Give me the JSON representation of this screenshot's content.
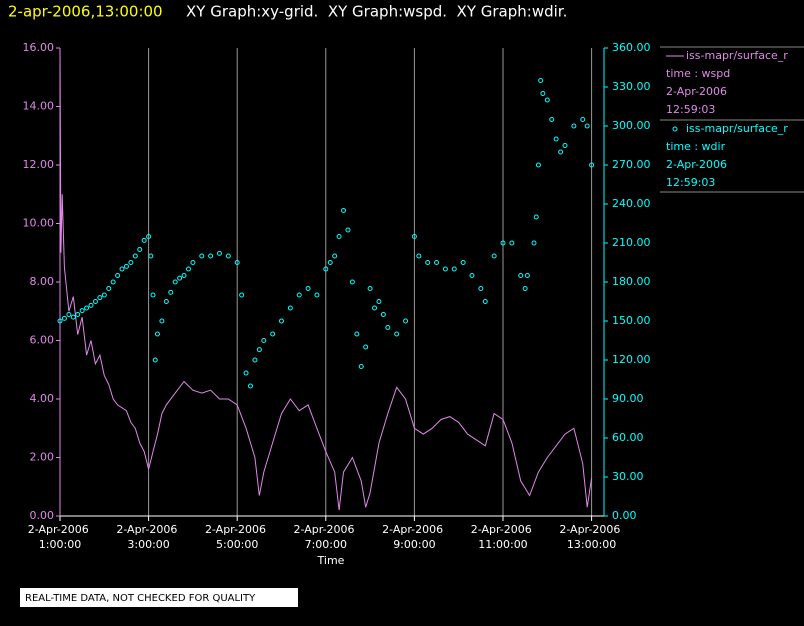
{
  "chart_data": {
    "type": "line",
    "title": "2-apr-2006,13:00:00",
    "subtitle": "XY Graph:xy-grid.  XY Graph:wspd.  XY Graph:wdir.",
    "x_label": "Time",
    "note": "REAL-TIME DATA, NOT CHECKED FOR QUALITY",
    "grid": true,
    "xlim": [
      1,
      13.28
    ],
    "xticks": [
      {
        "value": 1,
        "label": "2-Apr-2006 1:00:00"
      },
      {
        "value": 3,
        "label": "2-Apr-2006 3:00:00"
      },
      {
        "value": 5,
        "label": "2-Apr-2006 5:00:00"
      },
      {
        "value": 7,
        "label": "2-Apr-2006 7:00:00"
      },
      {
        "value": 9,
        "label": "2-Apr-2006 9:00:00"
      },
      {
        "value": 11,
        "label": "2-Apr-2006 11:00:00"
      },
      {
        "value": 13,
        "label": "2-Apr-2006 13:00:00"
      }
    ],
    "ylim": [
      0,
      16
    ],
    "yticks": [
      {
        "value": 0,
        "label": "0.00"
      },
      {
        "value": 2,
        "label": "2.00"
      },
      {
        "value": 4,
        "label": "4.00"
      },
      {
        "value": 6,
        "label": "6.00"
      },
      {
        "value": 8,
        "label": "8.00"
      },
      {
        "value": 10,
        "label": "10.00"
      },
      {
        "value": 12,
        "label": "12.00"
      },
      {
        "value": 14,
        "label": "14.00"
      },
      {
        "value": 16,
        "label": "16.00"
      }
    ],
    "y2lim": [
      0,
      360
    ],
    "y2ticks": [
      {
        "value": 0,
        "label": "0.00"
      },
      {
        "value": 30,
        "label": "30.00"
      },
      {
        "value": 60,
        "label": "60.00"
      },
      {
        "value": 90,
        "label": "90.00"
      },
      {
        "value": 120,
        "label": "120.00"
      },
      {
        "value": 150,
        "label": "150.00"
      },
      {
        "value": 180,
        "label": "180.00"
      },
      {
        "value": 210,
        "label": "210.00"
      },
      {
        "value": 240,
        "label": "240.00"
      },
      {
        "value": 270,
        "label": "270.00"
      },
      {
        "value": 300,
        "label": "300.00"
      },
      {
        "value": 330,
        "label": "330.00"
      },
      {
        "value": 360,
        "label": "360.00"
      }
    ],
    "series": [
      {
        "name": "iss-mapr/surface_r",
        "label_lines": [
          "time : wspd",
          "2-Apr-2006",
          "12:59:03"
        ],
        "color": "#e088e8",
        "marker": "line",
        "axis": "y",
        "x": [
          1.0,
          1.02,
          1.05,
          1.1,
          1.2,
          1.3,
          1.4,
          1.5,
          1.6,
          1.7,
          1.8,
          1.9,
          2.0,
          2.1,
          2.2,
          2.3,
          2.5,
          2.6,
          2.7,
          2.8,
          2.9,
          3.0,
          3.1,
          3.2,
          3.3,
          3.4,
          3.6,
          3.8,
          4.0,
          4.2,
          4.4,
          4.6,
          4.8,
          5.0,
          5.2,
          5.4,
          5.5,
          5.6,
          5.8,
          6.0,
          6.2,
          6.4,
          6.6,
          6.8,
          7.0,
          7.2,
          7.3,
          7.4,
          7.6,
          7.8,
          7.9,
          8.0,
          8.2,
          8.4,
          8.6,
          8.8,
          9.0,
          9.2,
          9.4,
          9.6,
          9.8,
          10.0,
          10.2,
          10.4,
          10.6,
          10.8,
          11.0,
          11.2,
          11.4,
          11.6,
          11.8,
          12.0,
          12.2,
          12.4,
          12.6,
          12.8,
          12.9,
          13.0
        ],
        "values": [
          16,
          9,
          11,
          8.5,
          7,
          7.5,
          6.2,
          6.8,
          5.5,
          6,
          5.2,
          5.5,
          4.8,
          4.5,
          4.0,
          3.8,
          3.6,
          3.2,
          3.0,
          2.5,
          2.2,
          1.6,
          2.2,
          2.8,
          3.5,
          3.8,
          4.2,
          4.6,
          4.3,
          4.2,
          4.3,
          4.0,
          4.0,
          3.8,
          3.0,
          2.0,
          0.7,
          1.5,
          2.5,
          3.5,
          4.0,
          3.6,
          3.8,
          3.0,
          2.2,
          1.5,
          0.2,
          1.5,
          2.0,
          1.2,
          0.3,
          0.8,
          2.5,
          3.5,
          4.4,
          4.0,
          3.0,
          2.8,
          3.0,
          3.3,
          3.4,
          3.2,
          2.8,
          2.6,
          2.4,
          3.5,
          3.3,
          2.5,
          1.2,
          0.7,
          1.5,
          2.0,
          2.4,
          2.8,
          3.0,
          1.8,
          0.3,
          1.3
        ]
      },
      {
        "name": "iss-mapr/surface_r",
        "label_lines": [
          "time : wdir",
          "2-Apr-2006",
          "12:59:03"
        ],
        "color": "#00ffff",
        "marker": "circle",
        "axis": "y2",
        "x": [
          1.0,
          1.1,
          1.2,
          1.3,
          1.4,
          1.5,
          1.6,
          1.7,
          1.8,
          1.9,
          2.0,
          2.1,
          2.2,
          2.3,
          2.4,
          2.5,
          2.6,
          2.7,
          2.8,
          2.9,
          3.0,
          3.05,
          3.1,
          3.15,
          3.2,
          3.3,
          3.4,
          3.5,
          3.6,
          3.7,
          3.8,
          3.9,
          4.0,
          4.2,
          4.4,
          4.6,
          4.8,
          5.0,
          5.1,
          5.2,
          5.3,
          5.4,
          5.5,
          5.6,
          5.8,
          6.0,
          6.2,
          6.4,
          6.6,
          6.8,
          7.0,
          7.1,
          7.2,
          7.3,
          7.4,
          7.5,
          7.6,
          7.7,
          7.8,
          7.9,
          8.0,
          8.1,
          8.2,
          8.3,
          8.4,
          8.6,
          8.8,
          9.0,
          9.1,
          9.3,
          9.5,
          9.7,
          9.9,
          10.1,
          10.3,
          10.5,
          10.6,
          10.8,
          11.0,
          11.2,
          11.4,
          11.5,
          11.55,
          11.7,
          11.75,
          11.8,
          11.85,
          11.9,
          12.0,
          12.1,
          12.2,
          12.3,
          12.4,
          12.6,
          12.8,
          12.9,
          13.0
        ],
        "values": [
          150,
          152,
          155,
          153,
          155,
          158,
          160,
          162,
          165,
          168,
          170,
          175,
          180,
          185,
          190,
          192,
          195,
          200,
          205,
          212,
          215,
          200,
          170,
          120,
          140,
          150,
          165,
          172,
          180,
          183,
          185,
          190,
          195,
          200,
          200,
          202,
          200,
          195,
          170,
          110,
          100,
          120,
          128,
          135,
          140,
          150,
          160,
          170,
          175,
          170,
          190,
          195,
          200,
          215,
          235,
          220,
          180,
          140,
          115,
          130,
          175,
          160,
          165,
          155,
          145,
          140,
          150,
          215,
          200,
          195,
          195,
          190,
          190,
          195,
          185,
          175,
          165,
          200,
          210,
          210,
          185,
          175,
          185,
          210,
          230,
          270,
          335,
          325,
          320,
          305,
          290,
          280,
          285,
          300,
          305,
          300,
          270
        ]
      }
    ]
  }
}
